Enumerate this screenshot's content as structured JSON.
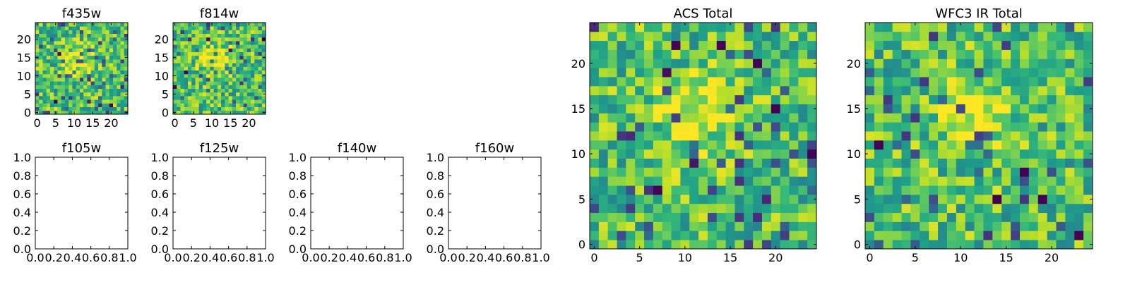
{
  "chart_data": [
    {
      "type": "heatmap",
      "title": "f435w",
      "size": 25,
      "xlim": [
        -0.5,
        24.5
      ],
      "ylim": [
        -0.5,
        24.5
      ],
      "xticks": [
        0,
        5,
        10,
        15,
        20
      ],
      "yticks": [
        0,
        5,
        10,
        15,
        20
      ],
      "colormap": "viridis",
      "origin": "lower",
      "seed": 435
    },
    {
      "type": "heatmap",
      "title": "f814w",
      "size": 25,
      "xlim": [
        -0.5,
        24.5
      ],
      "ylim": [
        -0.5,
        24.5
      ],
      "xticks": [
        0,
        5,
        10,
        15,
        20
      ],
      "yticks": [
        0,
        5,
        10,
        15,
        20
      ],
      "colormap": "viridis",
      "origin": "lower",
      "seed": 814
    },
    {
      "type": "empty",
      "title": "f105w",
      "xlim": [
        0,
        1
      ],
      "ylim": [
        0,
        1
      ],
      "xticks": [
        "0.0",
        "0.2",
        "0.4",
        "0.6",
        "0.8",
        "1.0"
      ],
      "yticks": [
        "0.0",
        "0.2",
        "0.4",
        "0.6",
        "0.8",
        "1.0"
      ]
    },
    {
      "type": "empty",
      "title": "f125w",
      "xlim": [
        0,
        1
      ],
      "ylim": [
        0,
        1
      ],
      "xticks": [
        "0.0",
        "0.2",
        "0.4",
        "0.6",
        "0.8",
        "1.0"
      ],
      "yticks": [
        "0.0",
        "0.2",
        "0.4",
        "0.6",
        "0.8",
        "1.0"
      ]
    },
    {
      "type": "empty",
      "title": "f140w",
      "xlim": [
        0,
        1
      ],
      "ylim": [
        0,
        1
      ],
      "xticks": [
        "0.0",
        "0.2",
        "0.4",
        "0.6",
        "0.8",
        "1.0"
      ],
      "yticks": [
        "0.0",
        "0.2",
        "0.4",
        "0.6",
        "0.8",
        "1.0"
      ]
    },
    {
      "type": "empty",
      "title": "f160w",
      "xlim": [
        0,
        1
      ],
      "ylim": [
        0,
        1
      ],
      "xticks": [
        "0.0",
        "0.2",
        "0.4",
        "0.6",
        "0.8",
        "1.0"
      ],
      "yticks": [
        "0.0",
        "0.2",
        "0.4",
        "0.6",
        "0.8",
        "1.0"
      ]
    },
    {
      "type": "heatmap",
      "title": "ACS Total",
      "size": 25,
      "xlim": [
        -0.5,
        24.5
      ],
      "ylim": [
        -0.5,
        24.5
      ],
      "xticks": [
        0,
        5,
        10,
        15,
        20
      ],
      "yticks": [
        0,
        5,
        10,
        15,
        20
      ],
      "colormap": "viridis",
      "origin": "lower",
      "seed": 1001
    },
    {
      "type": "heatmap",
      "title": "WFC3 IR Total",
      "size": 25,
      "xlim": [
        -0.5,
        24.5
      ],
      "ylim": [
        -0.5,
        24.5
      ],
      "xticks": [
        0,
        5,
        10,
        15,
        20
      ],
      "yticks": [
        0,
        5,
        10,
        15,
        20
      ],
      "colormap": "viridis",
      "origin": "lower",
      "seed": 2002
    }
  ]
}
